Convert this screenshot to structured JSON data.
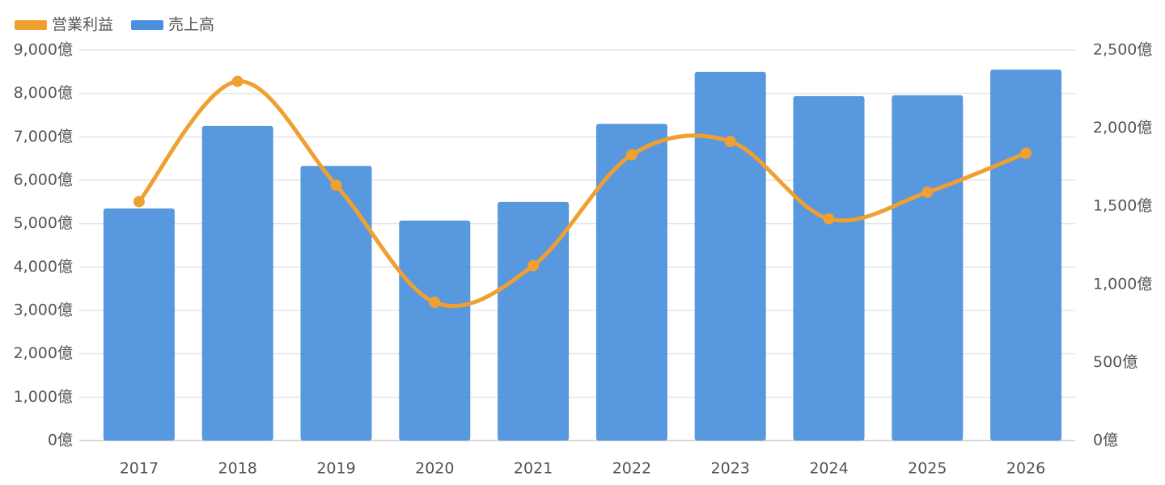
{
  "chart_data": {
    "type": "bar-line",
    "categories": [
      "2017",
      "2018",
      "2019",
      "2020",
      "2021",
      "2022",
      "2023",
      "2024",
      "2025",
      "2026"
    ],
    "series": [
      {
        "name": "営業利益",
        "color": "#f0a030",
        "type": "line",
        "axis": "y2",
        "values": [
          1530,
          2300,
          1635,
          885,
          1120,
          1830,
          1915,
          1420,
          1590,
          1840
        ]
      },
      {
        "name": "売上高",
        "color": "#4a90dc",
        "type": "bar",
        "values": [
          5350,
          7250,
          6330,
          5070,
          5500,
          7300,
          8500,
          7940,
          7960,
          8550
        ]
      }
    ],
    "ylim": [
      0,
      9000
    ],
    "yticks": [
      {
        "value": 0,
        "label": "0億"
      },
      {
        "value": 1000,
        "label": "1,000億"
      },
      {
        "value": 2000,
        "label": "2,000億"
      },
      {
        "value": 3000,
        "label": "3,000億"
      },
      {
        "value": 4000,
        "label": "4,000億"
      },
      {
        "value": 5000,
        "label": "5,000億"
      },
      {
        "value": 6000,
        "label": "6,000億"
      },
      {
        "value": 7000,
        "label": "7,000億"
      },
      {
        "value": 8000,
        "label": "8,000億"
      },
      {
        "value": 9000,
        "label": "9,000億"
      }
    ],
    "y2lim": [
      0,
      2500
    ],
    "y2ticks": [
      {
        "value": 0,
        "label": "0億"
      },
      {
        "value": 500,
        "label": "500億"
      },
      {
        "value": 1000,
        "label": "1,000億"
      },
      {
        "value": 1500,
        "label": "1,500億"
      },
      {
        "value": 2000,
        "label": "2,000億"
      },
      {
        "value": 2500,
        "label": "2,500億"
      }
    ],
    "grid": true,
    "legend": "top-left"
  }
}
